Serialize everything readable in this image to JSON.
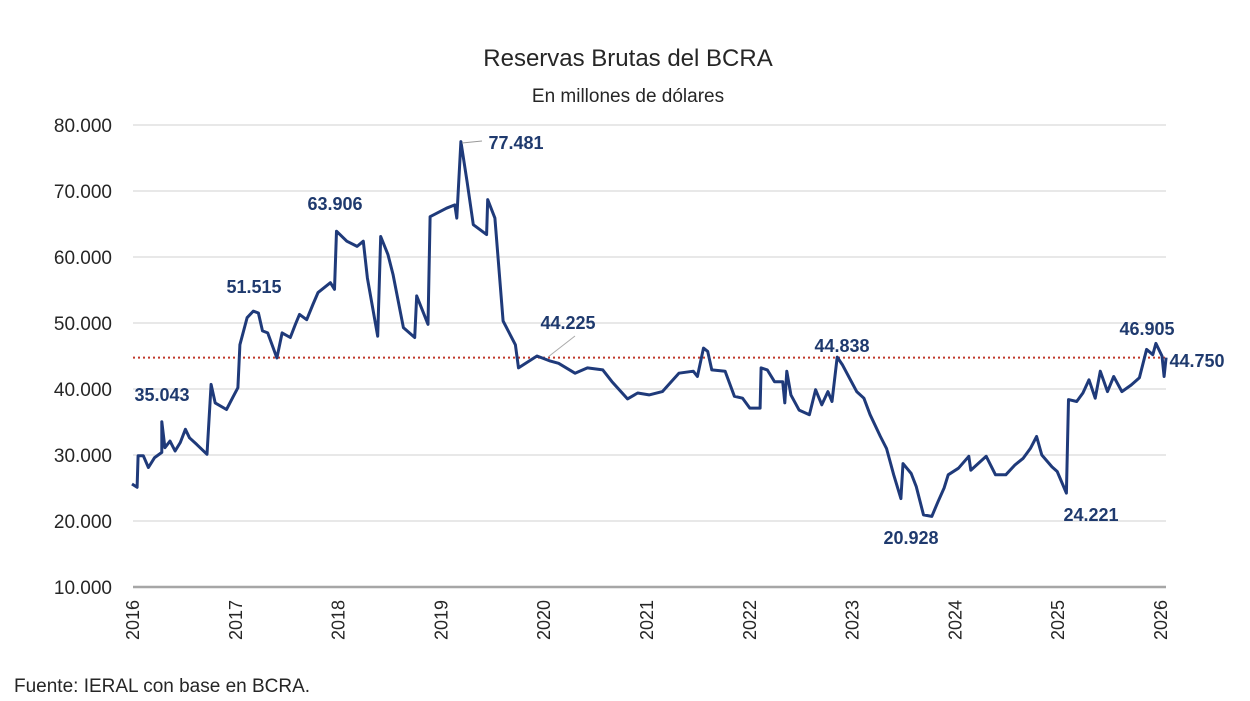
{
  "chart_data": {
    "type": "line",
    "title": "Reservas Brutas del BCRA",
    "subtitle": "En millones de dólares",
    "xlabel": "",
    "ylabel": "",
    "ylim": [
      10000,
      80000
    ],
    "xlim": [
      2016,
      2026.1
    ],
    "grid": true,
    "legend": "none",
    "y_ticks": [
      "10.000",
      "20.000",
      "30.000",
      "40.000",
      "50.000",
      "60.000",
      "70.000",
      "80.000"
    ],
    "y_tick_values": [
      10000,
      20000,
      30000,
      40000,
      50000,
      60000,
      70000,
      80000
    ],
    "x_ticks": [
      "2016",
      "2017",
      "2018",
      "2019",
      "2020",
      "2021",
      "2022",
      "2023",
      "2024",
      "2025",
      "2026"
    ],
    "colors": {
      "series": "#1f3a7a",
      "reference_line": "#c0392b",
      "grid": "#d9d9d9",
      "annotation": "#1f3a6e"
    },
    "reference_line": {
      "value": 44750,
      "style": "dotted"
    },
    "series": [
      {
        "points": [
          [
            2015.99,
            25600
          ],
          [
            2016.04,
            25100
          ],
          [
            2016.05,
            29900
          ],
          [
            2016.1,
            29900
          ],
          [
            2016.15,
            28100
          ],
          [
            2016.21,
            29600
          ],
          [
            2016.28,
            30400
          ],
          [
            2016.28,
            35043
          ],
          [
            2016.31,
            31100
          ],
          [
            2016.36,
            32100
          ],
          [
            2016.41,
            30600
          ],
          [
            2016.46,
            31900
          ],
          [
            2016.51,
            33900
          ],
          [
            2016.55,
            32600
          ],
          [
            2016.62,
            31600
          ],
          [
            2016.72,
            30100
          ],
          [
            2016.76,
            40700
          ],
          [
            2016.8,
            37900
          ],
          [
            2016.91,
            36900
          ],
          [
            2016.97,
            38700
          ],
          [
            2017.02,
            40200
          ],
          [
            2017.04,
            46700
          ],
          [
            2017.11,
            50800
          ],
          [
            2017.17,
            51800
          ],
          [
            2017.22,
            51515
          ],
          [
            2017.26,
            48800
          ],
          [
            2017.31,
            48500
          ],
          [
            2017.4,
            44700
          ],
          [
            2017.45,
            48500
          ],
          [
            2017.53,
            47800
          ],
          [
            2017.58,
            49800
          ],
          [
            2017.62,
            51300
          ],
          [
            2017.69,
            50500
          ],
          [
            2017.75,
            52800
          ],
          [
            2017.8,
            54600
          ],
          [
            2017.92,
            56100
          ],
          [
            2017.96,
            55100
          ],
          [
            2017.98,
            63906
          ],
          [
            2018.08,
            62400
          ],
          [
            2018.18,
            61600
          ],
          [
            2018.24,
            62400
          ],
          [
            2018.28,
            56800
          ],
          [
            2018.38,
            48000
          ],
          [
            2018.41,
            63100
          ],
          [
            2018.48,
            60400
          ],
          [
            2018.53,
            57300
          ],
          [
            2018.63,
            49300
          ],
          [
            2018.74,
            47800
          ],
          [
            2018.76,
            54100
          ],
          [
            2018.87,
            49800
          ],
          [
            2018.89,
            66100
          ],
          [
            2019.05,
            67400
          ],
          [
            2019.13,
            67900
          ],
          [
            2019.15,
            65900
          ],
          [
            2019.19,
            77481
          ],
          [
            2019.25,
            71400
          ],
          [
            2019.31,
            64900
          ],
          [
            2019.44,
            63400
          ],
          [
            2019.45,
            68700
          ],
          [
            2019.52,
            65900
          ],
          [
            2019.6,
            50300
          ],
          [
            2019.72,
            46700
          ],
          [
            2019.75,
            43200
          ],
          [
            2019.93,
            45000
          ],
          [
            2020.06,
            44225
          ],
          [
            2020.14,
            43900
          ],
          [
            2020.3,
            42400
          ],
          [
            2020.42,
            43200
          ],
          [
            2020.57,
            42900
          ],
          [
            2020.66,
            41100
          ],
          [
            2020.81,
            38500
          ],
          [
            2020.91,
            39400
          ],
          [
            2021.02,
            39100
          ],
          [
            2021.15,
            39600
          ],
          [
            2021.31,
            42400
          ],
          [
            2021.45,
            42700
          ],
          [
            2021.49,
            41900
          ],
          [
            2021.55,
            46200
          ],
          [
            2021.59,
            45700
          ],
          [
            2021.63,
            42900
          ],
          [
            2021.76,
            42700
          ],
          [
            2021.85,
            38900
          ],
          [
            2021.93,
            38600
          ],
          [
            2022.0,
            37100
          ],
          [
            2022.1,
            37100
          ],
          [
            2022.11,
            43200
          ],
          [
            2022.17,
            42900
          ],
          [
            2022.24,
            41100
          ],
          [
            2022.32,
            41100
          ],
          [
            2022.34,
            37900
          ],
          [
            2022.36,
            42700
          ],
          [
            2022.4,
            39100
          ],
          [
            2022.48,
            36800
          ],
          [
            2022.58,
            36100
          ],
          [
            2022.64,
            39900
          ],
          [
            2022.7,
            37600
          ],
          [
            2022.76,
            39600
          ],
          [
            2022.8,
            38100
          ],
          [
            2022.85,
            44838
          ],
          [
            2022.9,
            43700
          ],
          [
            2023.04,
            39600
          ],
          [
            2023.11,
            38600
          ],
          [
            2023.17,
            36100
          ],
          [
            2023.27,
            32800
          ],
          [
            2023.33,
            31000
          ],
          [
            2023.4,
            27000
          ],
          [
            2023.47,
            23400
          ],
          [
            2023.49,
            28700
          ],
          [
            2023.57,
            27200
          ],
          [
            2023.62,
            25200
          ],
          [
            2023.69,
            20928
          ],
          [
            2023.77,
            20700
          ],
          [
            2023.83,
            22900
          ],
          [
            2023.89,
            25000
          ],
          [
            2023.93,
            27000
          ],
          [
            2024.03,
            28000
          ],
          [
            2024.13,
            29800
          ],
          [
            2024.15,
            27700
          ],
          [
            2024.3,
            29800
          ],
          [
            2024.39,
            27000
          ],
          [
            2024.49,
            27000
          ],
          [
            2024.58,
            28500
          ],
          [
            2024.66,
            29500
          ],
          [
            2024.73,
            31000
          ],
          [
            2024.79,
            32800
          ],
          [
            2024.84,
            30000
          ],
          [
            2024.94,
            28200
          ],
          [
            2024.99,
            27500
          ],
          [
            2025.08,
            24221
          ],
          [
            2025.1,
            38400
          ],
          [
            2025.18,
            38100
          ],
          [
            2025.24,
            39400
          ],
          [
            2025.3,
            41400
          ],
          [
            2025.36,
            38600
          ],
          [
            2025.41,
            42700
          ],
          [
            2025.48,
            39600
          ],
          [
            2025.54,
            41900
          ],
          [
            2025.62,
            39600
          ],
          [
            2025.71,
            40600
          ],
          [
            2025.79,
            41700
          ],
          [
            2025.86,
            46000
          ],
          [
            2025.92,
            45200
          ],
          [
            2025.95,
            46905
          ],
          [
            2026.01,
            45000
          ],
          [
            2026.03,
            41900
          ],
          [
            2026.05,
            44750
          ]
        ]
      }
    ],
    "annotations": [
      {
        "text": "77.481",
        "value": 77481
      },
      {
        "text": "63.906",
        "value": 63906
      },
      {
        "text": "51.515",
        "value": 51515
      },
      {
        "text": "35.043",
        "value": 35043
      },
      {
        "text": "44.225",
        "value": 44225
      },
      {
        "text": "44.838",
        "value": 44838
      },
      {
        "text": "20.928",
        "value": 20928
      },
      {
        "text": "24.221",
        "value": 24221
      },
      {
        "text": "46.905",
        "value": 46905
      },
      {
        "text": "44.750",
        "value": 44750
      }
    ]
  },
  "source": "Fuente: IERAL con base en BCRA."
}
